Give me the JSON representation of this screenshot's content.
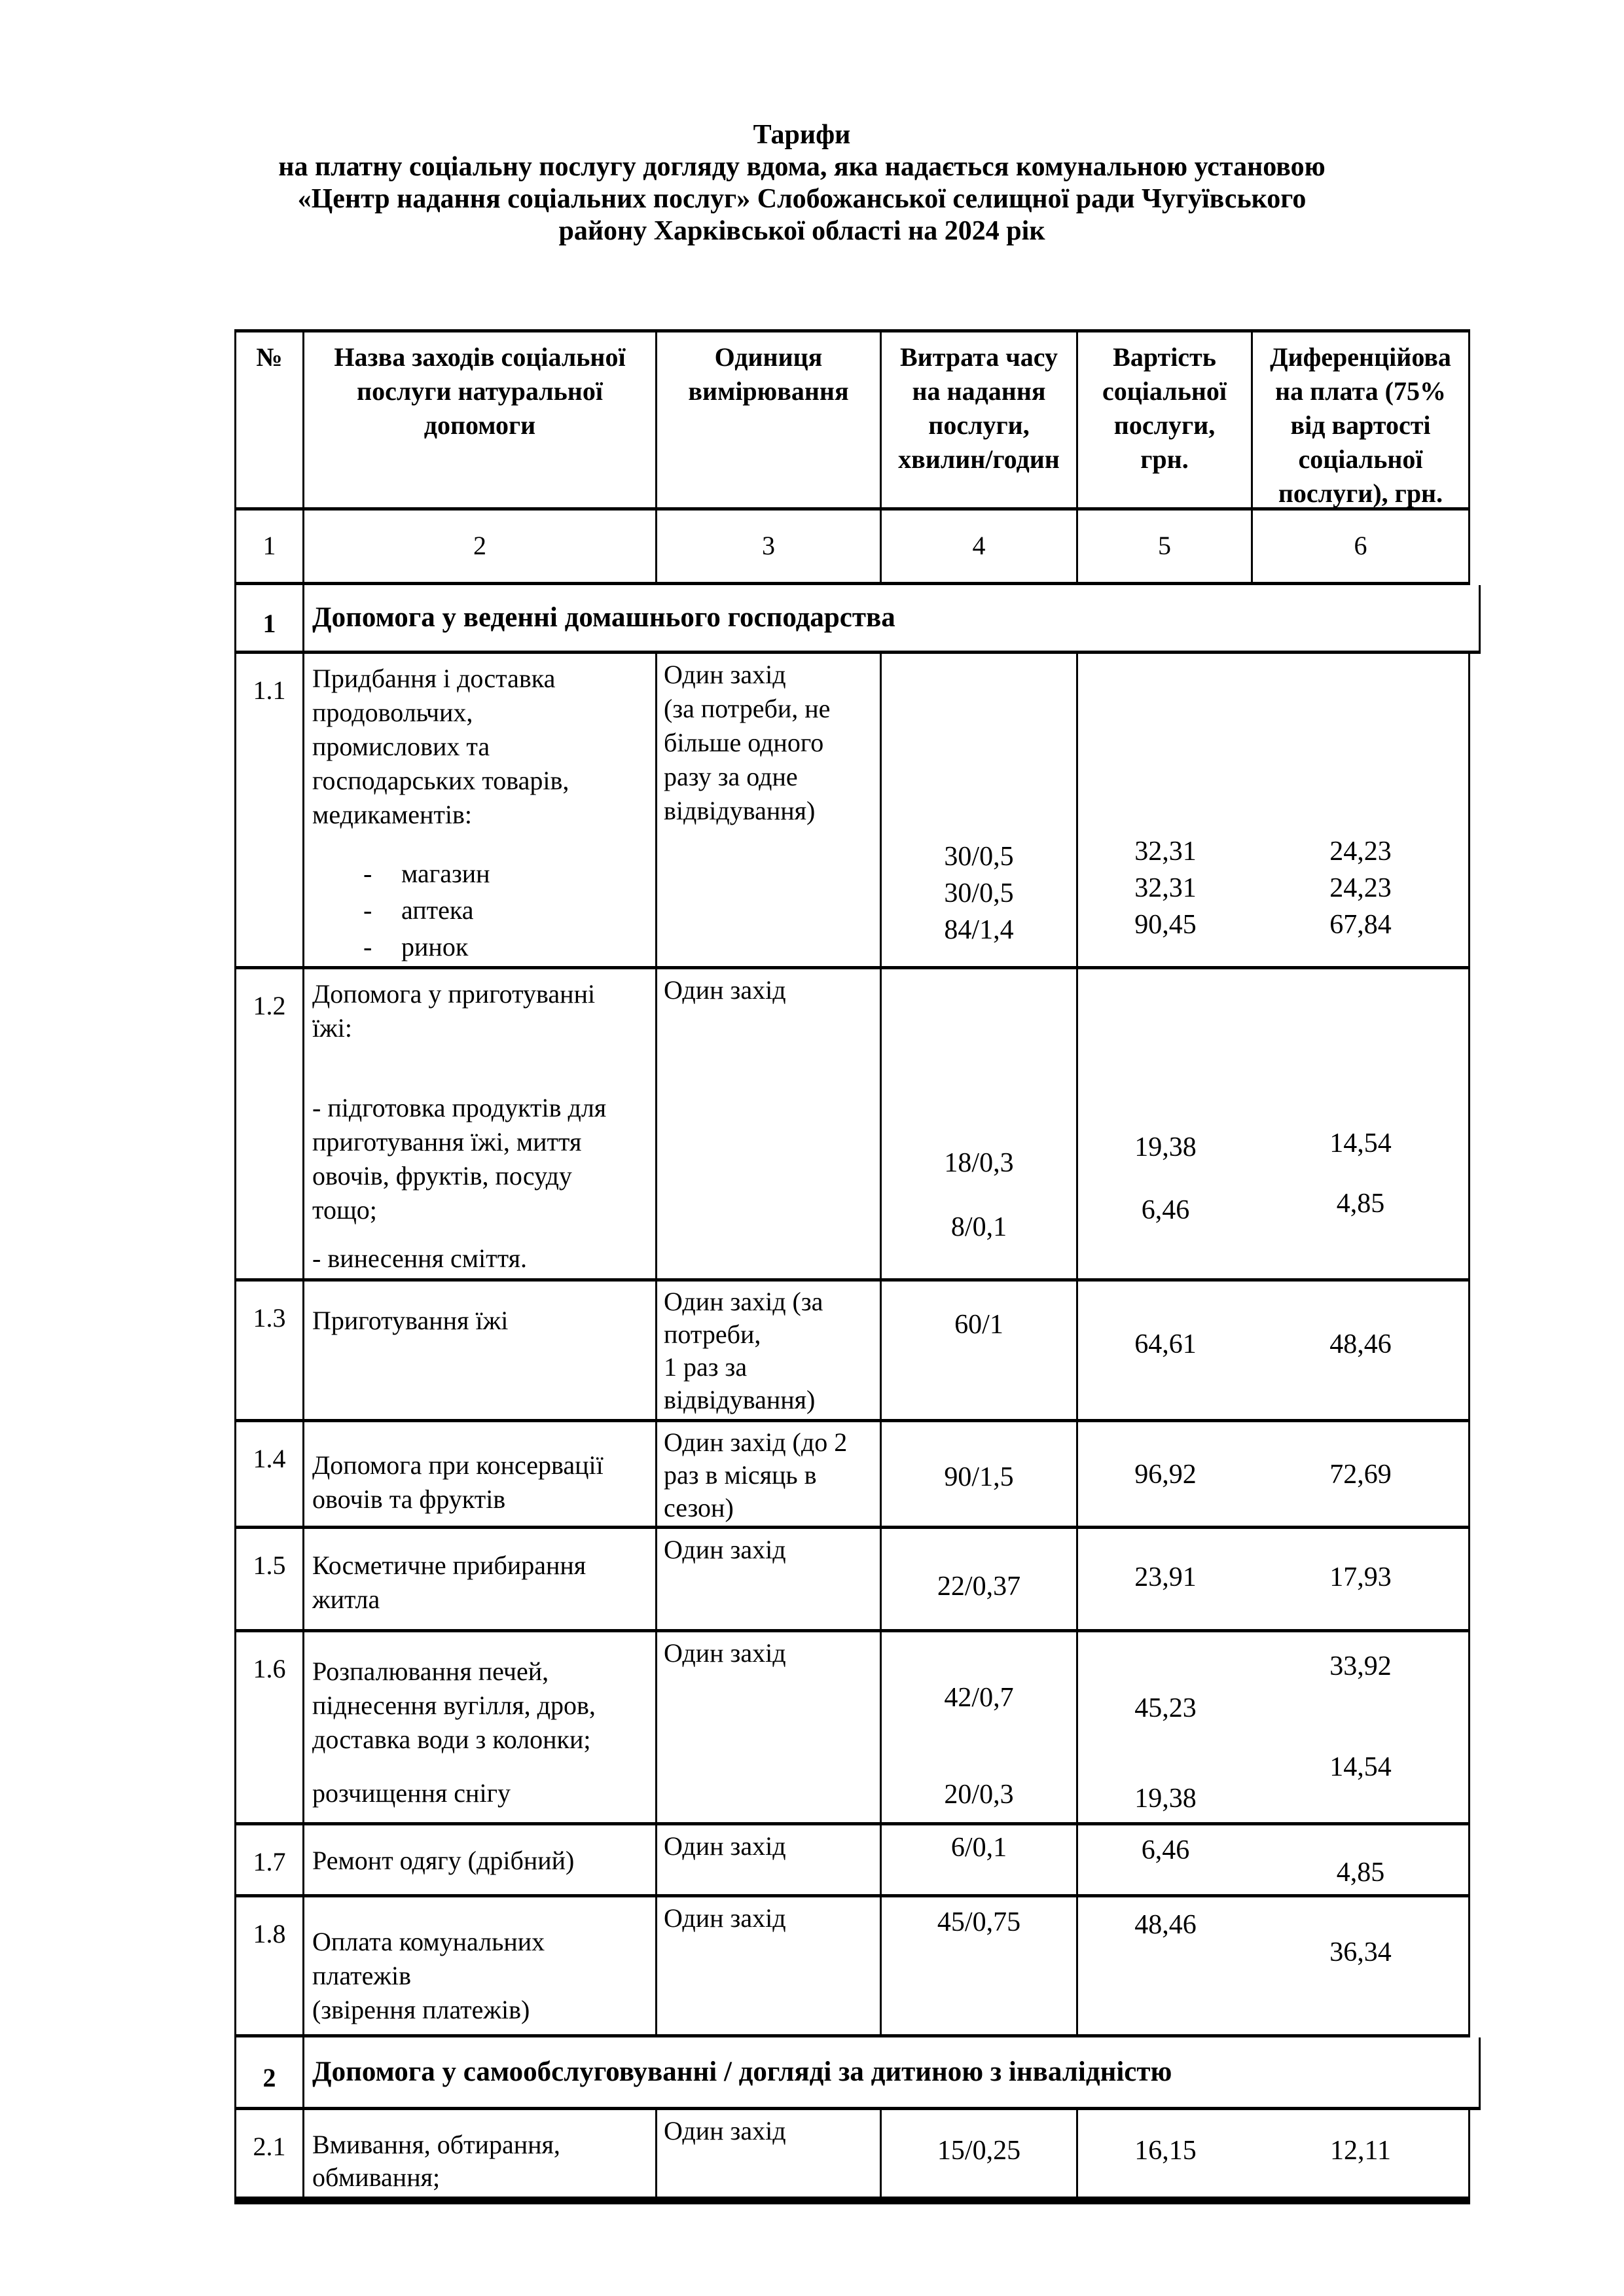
{
  "title": {
    "line1": "Тарифи",
    "line2": "на платну соціальну послугу догляду вдома, яка надається комунальною установою",
    "line3": "«Центр надання соціальних послуг» Слобожанської селищної ради Чугуївського",
    "line4": "району Харківської області на 2024 рік"
  },
  "table": {
    "headers": {
      "col1": "№",
      "col2": "Назва заходів соціальної\nпослуги натуральної\nдопомоги",
      "col3": "Одиниця\nвимірювання",
      "col4": "Витрата часу\nна надання\nпослуги,\nхвилин/годин",
      "col5": "Вартість\nсоціальної\nпослуги,\nгрн.",
      "col6": "Диференційова\nна плата (75%\nвід вартості\nсоціальної\nпослуги), грн."
    },
    "column_numbers": [
      "1",
      "2",
      "3",
      "4",
      "5",
      "6"
    ],
    "section1": {
      "num": "1",
      "title": "Допомога у веденні домашнього господарства"
    },
    "section2": {
      "num": "2",
      "title": "Допомога у самообслуговуванні / догляді за дитиною з інвалідністю"
    },
    "rows": [
      {
        "num": "1.1",
        "name": "Придбання і доставка\nпродовольчих,\nпромислових та\nгосподарських товарів,\nмедикаментів:",
        "sub_items": [
          {
            "bullet": "-",
            "text": "магазин"
          },
          {
            "bullet": "-",
            "text": "аптека"
          },
          {
            "bullet": "-",
            "text": "ринок"
          }
        ],
        "unit": "Один захід\n (за потреби, не\nбільше одного\nразу за одне\nвідвідування)",
        "time": [
          "30/0,5",
          "30/0,5",
          "84/1,4"
        ],
        "cost": [
          "32,31",
          "32,31",
          "90,45"
        ],
        "diff": [
          "24,23",
          "24,23",
          "67,84"
        ]
      },
      {
        "num": "1.2",
        "name": "Допомога у приготуванні\nїжі:",
        "name2": "- підготовка продуктів для\nприготування їжі, миття\nовочів, фруктів, посуду\nтощо;",
        "name3": "- винесення сміття.",
        "unit": "Один захід",
        "time": [
          "18/0,3",
          "8/0,1"
        ],
        "cost": [
          "19,38",
          "6,46"
        ],
        "diff": [
          "14,54",
          "4,85"
        ]
      },
      {
        "num": "1.3",
        "name": "Приготування їжі",
        "unit": "Один захід (за\nпотреби,\n1 раз за\nвідвідування)",
        "time": [
          "60/1"
        ],
        "cost": [
          "64,61"
        ],
        "diff": [
          "48,46"
        ]
      },
      {
        "num": "1.4",
        "name": "Допомога при консервації\nовочів та фруктів",
        "unit": "Один захід (до 2\nраз в місяць в\nсезон)",
        "time": [
          "90/1,5"
        ],
        "cost": [
          "96,92"
        ],
        "diff": [
          "72,69"
        ]
      },
      {
        "num": "1.5",
        "name": "Косметичне прибирання\nжитла",
        "unit": "Один захід",
        "time": [
          "22/0,37"
        ],
        "cost": [
          "23,91"
        ],
        "diff": [
          "17,93"
        ]
      },
      {
        "num": "1.6",
        "name": "Розпалювання печей,\nпіднесення вугілля, дров,\nдоставка води з колонки;",
        "name2": "розчищення снігу",
        "unit": "Один захід",
        "time": [
          "42/0,7",
          "20/0,3"
        ],
        "cost": [
          "45,23",
          "19,38"
        ],
        "diff": [
          "33,92",
          "14,54"
        ]
      },
      {
        "num": "1.7",
        "name": "Ремонт одягу (дрібний)",
        "unit": "Один захід",
        "time": [
          "6/0,1"
        ],
        "cost": [
          "6,46"
        ],
        "diff": [
          "4,85"
        ]
      },
      {
        "num": "1.8",
        "name": "Оплата комунальних\nплатежів\n(звірення платежів)",
        "unit": "Один захід",
        "time": [
          "45/0,75"
        ],
        "cost": [
          "48,46"
        ],
        "diff": [
          "36,34"
        ]
      },
      {
        "num": "2.1",
        "name": "Вмивання, обтирання,\nобмивання;",
        "unit": "Один захід",
        "time": [
          "15/0,25"
        ],
        "cost": [
          "16,15"
        ],
        "diff": [
          "12,11"
        ]
      }
    ]
  }
}
